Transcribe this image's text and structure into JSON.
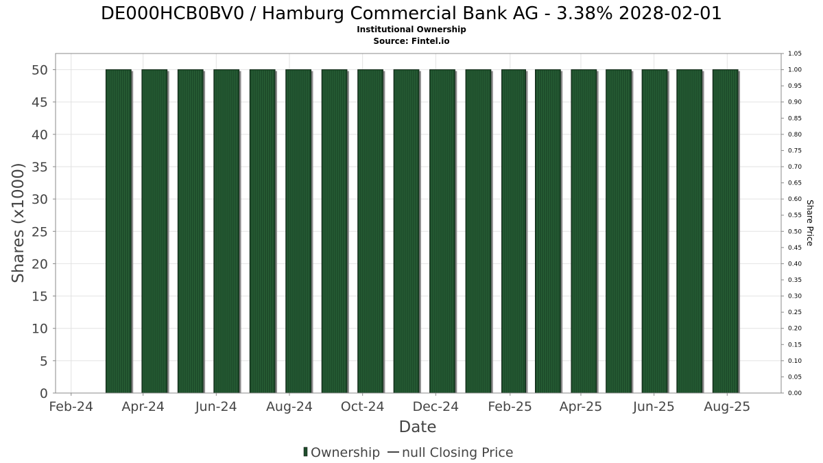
{
  "chart_data": {
    "type": "bar",
    "title": "DE000HCB0BV0 / Hamburg Commercial Bank AG - 3.38% 2028-02-01",
    "subtitle": [
      "Institutional Ownership",
      "Source: Fintel.io"
    ],
    "xlabel": "Date",
    "ylabel": "Shares (x1000)",
    "y2label": "Share Price",
    "x_ticks": [
      "Feb-24",
      "Apr-24",
      "Jun-24",
      "Aug-24",
      "Oct-24",
      "Dec-24",
      "Feb-25",
      "Apr-25",
      "Jun-25",
      "Aug-25"
    ],
    "x_tick_dates": [
      "2024-02-01",
      "2024-04-01",
      "2024-06-01",
      "2024-08-01",
      "2024-10-01",
      "2024-12-01",
      "2025-02-01",
      "2025-04-01",
      "2025-06-01",
      "2025-08-01"
    ],
    "xlim": [
      "2024-01-19",
      "2025-09-15"
    ],
    "ylim": [
      0,
      52.5
    ],
    "y_ticks": [
      0,
      5,
      10,
      15,
      20,
      25,
      30,
      35,
      40,
      45,
      50
    ],
    "y2lim": [
      0,
      1.05
    ],
    "y2_ticks": [
      "0.00",
      "0.05",
      "0.10",
      "0.15",
      "0.20",
      "0.25",
      "0.30",
      "0.35",
      "0.40",
      "0.45",
      "0.50",
      "0.55",
      "0.60",
      "0.65",
      "0.70",
      "0.75",
      "0.80",
      "0.85",
      "0.90",
      "0.95",
      "1.00",
      "1.05"
    ],
    "grid": true,
    "legend_position": "bottom",
    "series": [
      {
        "name": "Ownership",
        "kind": "bar",
        "color": "#1e4d2b",
        "points": [
          {
            "start": "2024-03-01",
            "end": "2024-03-21",
            "value": 50
          },
          {
            "start": "2024-03-31",
            "end": "2024-04-20",
            "value": 50
          },
          {
            "start": "2024-04-30",
            "end": "2024-05-20",
            "value": 50
          },
          {
            "start": "2024-05-30",
            "end": "2024-06-19",
            "value": 50
          },
          {
            "start": "2024-06-29",
            "end": "2024-07-19",
            "value": 50
          },
          {
            "start": "2024-07-29",
            "end": "2024-08-18",
            "value": 50
          },
          {
            "start": "2024-08-28",
            "end": "2024-09-17",
            "value": 50
          },
          {
            "start": "2024-09-27",
            "end": "2024-10-17",
            "value": 50
          },
          {
            "start": "2024-10-27",
            "end": "2024-11-16",
            "value": 50
          },
          {
            "start": "2024-11-26",
            "end": "2024-12-16",
            "value": 50
          },
          {
            "start": "2024-12-26",
            "end": "2025-01-15",
            "value": 50
          },
          {
            "start": "2025-01-25",
            "end": "2025-02-13",
            "value": 50
          },
          {
            "start": "2025-02-22",
            "end": "2025-03-14",
            "value": 50
          },
          {
            "start": "2025-03-24",
            "end": "2025-04-13",
            "value": 50
          },
          {
            "start": "2025-04-22",
            "end": "2025-05-12",
            "value": 50
          },
          {
            "start": "2025-05-22",
            "end": "2025-06-11",
            "value": 50
          },
          {
            "start": "2025-06-20",
            "end": "2025-07-10",
            "value": 50
          },
          {
            "start": "2025-07-20",
            "end": "2025-08-09",
            "value": 50
          }
        ]
      },
      {
        "name": "null Closing Price",
        "kind": "line",
        "color": "#444444",
        "points": []
      }
    ]
  }
}
